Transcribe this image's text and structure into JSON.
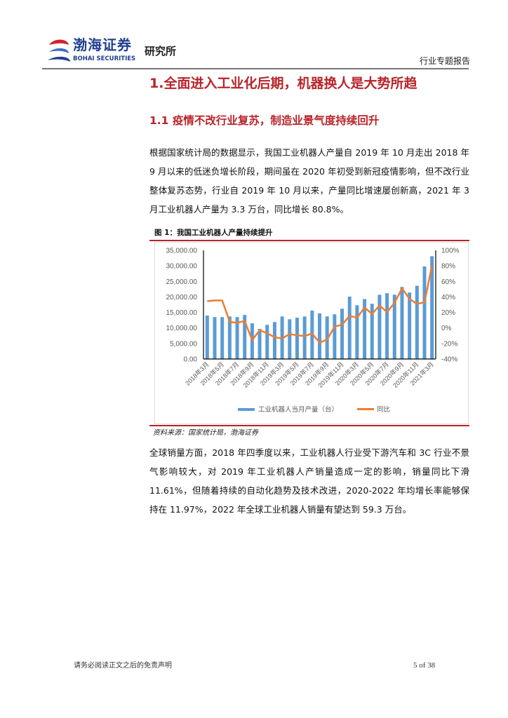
{
  "header": {
    "logo_cn": "渤海证券",
    "logo_en": "BOHAI SECURITIES",
    "institute": "研究所",
    "report_type": "行业专题报告"
  },
  "section": {
    "h1": "1.全面进入工业化后期，机器换人是大势所趋",
    "h2": "1.1 疫情不改行业复苏，制造业景气度持续回升",
    "p1": "根据国家统计局的数据显示，我国工业机器人产量自 2019 年 10 月走出 2018 年 9 月以来的低迷负增长阶段，期间虽在 2020 年初受到新冠疫情影响，但不改行业整体复苏态势，行业自 2019 年 10 月以来，产量同比增速屡创新高，2021 年 3 月工业机器人产量为 3.3 万台，同比增长 80.8%。",
    "figure_caption": "图 1：我国工业机器人产量持续提升",
    "source": "资料来源：国家统计局，渤海证券",
    "p2": "全球销量方面，2018 年四季度以来，工业机器人行业受下游汽车和 3C 行业不景气影响较大，对 2019 年工业机器人产销量造成一定的影响，销量同比下滑 11.61%，但随着持续的自动化趋势及技术改进，2020-2022 年均增长率能够保持在 11.97%，2022 年全球工业机器人销量有望达到 59.3 万台。"
  },
  "chart_data": {
    "type": "bar+line",
    "categories": [
      "2018年3月",
      "2018年4月",
      "2018年5月",
      "2018年6月",
      "2018年7月",
      "2018年8月",
      "2018年9月",
      "2018年10月",
      "2018年11月",
      "2018年12月",
      "2019年3月",
      "2019年4月",
      "2019年5月",
      "2019年6月",
      "2019年7月",
      "2019年8月",
      "2019年9月",
      "2019年10月",
      "2019年11月",
      "2019年12月",
      "2020年3月",
      "2020年4月",
      "2020年5月",
      "2020年6月",
      "2020年7月",
      "2020年8月",
      "2020年9月",
      "2020年10月",
      "2020年11月",
      "2020年12月",
      "2021年3月"
    ],
    "tick_labels": [
      "2018年3月",
      "2018年5月",
      "2018年7月",
      "2018年9月",
      "2018年11月",
      "2019年3月",
      "2019年5月",
      "2019年7月",
      "2019年9月",
      "2019年11月",
      "2020年3月",
      "2020年5月",
      "2020年7月",
      "2020年9月",
      "2020年11月",
      "2021年3月"
    ],
    "series": [
      {
        "name": "工业机器人当月产量（台）",
        "type": "bar",
        "axis": "left",
        "color": "#5b9bd5",
        "values": [
          14000,
          13500,
          13500,
          13700,
          13500,
          14200,
          11500,
          9700,
          11000,
          11900,
          13700,
          12800,
          13300,
          13700,
          15600,
          14700,
          13700,
          14400,
          16200,
          20100,
          17300,
          19300,
          17800,
          20700,
          21200,
          20700,
          23200,
          21400,
          23600,
          29800,
          33100
        ]
      },
      {
        "name": "同比",
        "type": "line",
        "axis": "right",
        "color": "#ed7d31",
        "values": [
          34.5,
          35.4,
          35.4,
          7.8,
          6.6,
          9.0,
          -15.6,
          -3.0,
          -6.9,
          -12.0,
          -13.5,
          -7.8,
          -9.6,
          -10.5,
          -7.2,
          -18.9,
          -15.0,
          1.8,
          4.2,
          15.6,
          13.2,
          26.4,
          18.0,
          29.0,
          20.4,
          32.4,
          51.0,
          37.5,
          31.0,
          33.0,
          80.8
        ]
      }
    ],
    "y_left": {
      "range": [
        0,
        35000
      ],
      "ticks": [
        "0.00",
        "5,000.00",
        "10,000.00",
        "15,000.00",
        "20,000.00",
        "25,000.00",
        "30,000.00",
        "35,000.00"
      ]
    },
    "y_right": {
      "range": [
        -40,
        100
      ],
      "ticks": [
        "-40%",
        "-20%",
        "0%",
        "20%",
        "40%",
        "60%",
        "80%",
        "100%"
      ]
    },
    "grid": false,
    "legend": "bottom"
  },
  "footer": {
    "disclaimer": "请务必阅读正文之后的免责声明",
    "page": "5 of 38"
  }
}
